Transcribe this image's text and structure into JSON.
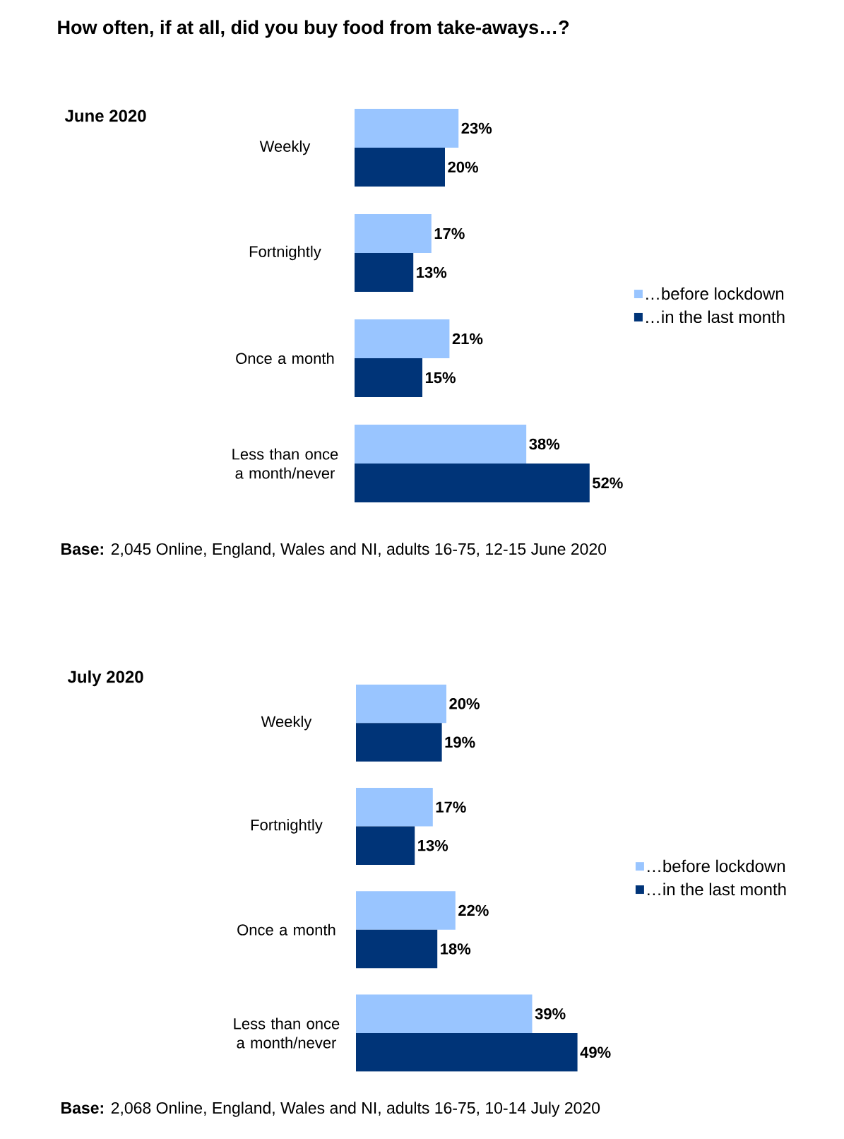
{
  "chart_data": [
    {
      "type": "bar",
      "orientation": "horizontal",
      "title": "How often, if at all, did you buy food from take-aways…?",
      "subtitle": "June 2020",
      "categories": [
        "Weekly",
        "Fortnightly",
        "Once a month",
        "Less than once a month/never"
      ],
      "series": [
        {
          "name": "…before lockdown",
          "color": "#99c5ff",
          "values": [
            23,
            17,
            21,
            38
          ],
          "value_labels": [
            "23%",
            "17%",
            "21%",
            "38%"
          ]
        },
        {
          "name": "…in the last month",
          "color": "#003478",
          "values": [
            20,
            13,
            15,
            52
          ],
          "value_labels": [
            "20%",
            "13%",
            "15%",
            "52%"
          ]
        }
      ],
      "legend": "right",
      "tick_labels": "y",
      "annotations": [
        "**Base:** 2,045 Online, England, Wales and NI, adults 16-75, 12-15 June 2020"
      ]
    },
    {
      "type": "bar",
      "orientation": "horizontal",
      "title": "July 2020",
      "categories": [
        "Weekly",
        "Fortnightly",
        "Once a month",
        "Less than once a month/never"
      ],
      "series": [
        {
          "name": "…before lockdown",
          "color": "#99c5ff",
          "values": [
            20,
            17,
            22,
            39
          ],
          "value_labels": [
            "20%",
            "17%",
            "22%",
            "39%"
          ]
        },
        {
          "name": "…in the last month",
          "color": "#003478",
          "values": [
            19,
            13,
            18,
            49
          ],
          "value_labels": [
            "19%",
            "13%",
            "18%",
            "49%"
          ]
        }
      ],
      "legend": "right",
      "tick_labels": "y",
      "annotations": [
        "**Base:** 2,068 Online, England, Wales and NI, adults 16-75, 10-14 July 2020"
      ]
    }
  ]
}
